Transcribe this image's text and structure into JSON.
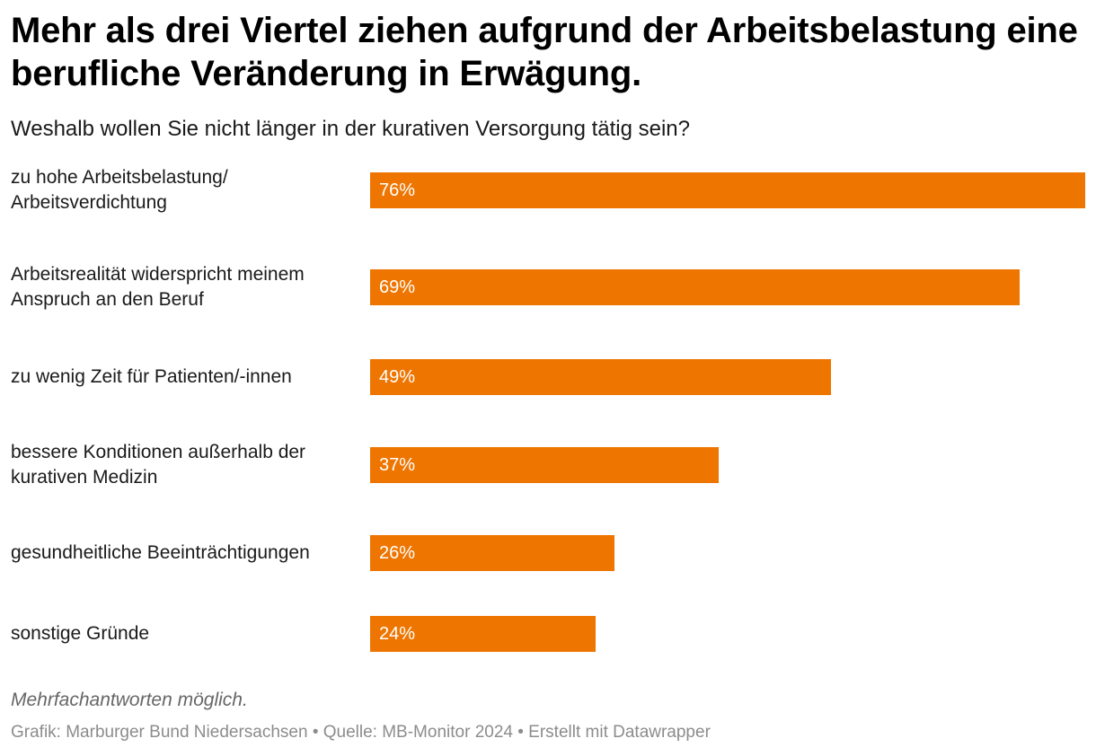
{
  "chart_data": {
    "type": "bar",
    "orientation": "horizontal",
    "title": "Mehr als drei Viertel ziehen aufgrund der Arbeitsbelastung eine berufliche Veränderung in Erwägung.",
    "subtitle": "Weshalb wollen Sie nicht länger in der kurativen Versorgung tätig sein?",
    "categories": [
      "zu hohe Arbeitsbelastung/\nArbeitsverdichtung",
      "Arbeitsrealität widerspricht meinem\nAnspruch an den Beruf",
      "zu wenig Zeit für Patienten/-innen",
      "bessere Konditionen außerhalb der\nkurativen Medizin",
      "gesundheitliche Beeinträchtigungen",
      "sonstige Gründe"
    ],
    "values": [
      76,
      69,
      49,
      37,
      26,
      24
    ],
    "value_labels": [
      "76%",
      "69%",
      "49%",
      "37%",
      "26%",
      "24%"
    ],
    "unit": "%",
    "bar_color": "#ee7500",
    "value_label_color": "#ffffff",
    "grid": false,
    "legend": "none"
  },
  "note": "Mehrfachantworten möglich.",
  "footer": "Grafik: Marburger Bund Niedersachsen • Quelle: MB-Monitor 2024 • Erstellt mit Datawrapper"
}
